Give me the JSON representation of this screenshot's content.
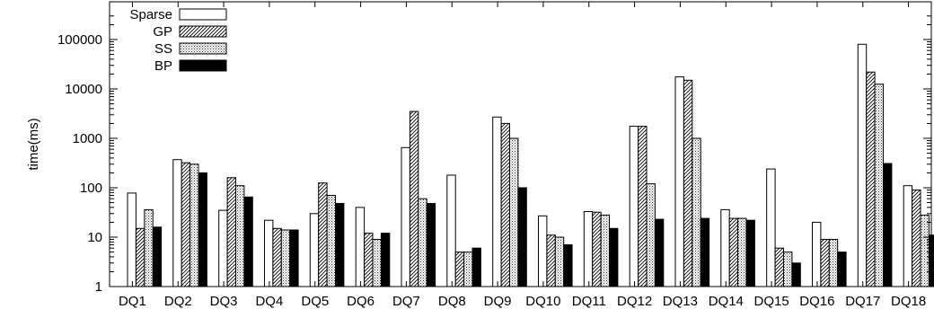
{
  "chart_data": {
    "type": "bar",
    "ylabel": "time(ms)",
    "yscale": "log",
    "ylim": [
      1,
      300000
    ],
    "yticks": [
      {
        "value": 1,
        "label": "1"
      },
      {
        "value": 10,
        "label": "10"
      },
      {
        "value": 100,
        "label": "100"
      },
      {
        "value": 1000,
        "label": "1000"
      },
      {
        "value": 10000,
        "label": "10000"
      },
      {
        "value": 100000,
        "label": "100000"
      }
    ],
    "grid": false,
    "legend_position": "top-left",
    "categories": [
      "DQ1",
      "DQ2",
      "DQ3",
      "DQ4",
      "DQ5",
      "DQ6",
      "DQ7",
      "DQ8",
      "DQ9",
      "DQ10",
      "DQ11",
      "DQ12",
      "DQ13",
      "DQ14",
      "DQ15",
      "DQ16",
      "DQ17",
      "DQ18"
    ],
    "series": [
      {
        "name": "Sparse",
        "pattern": "empty",
        "values": [
          78,
          370,
          35,
          22,
          30,
          40,
          650,
          180,
          2700,
          27,
          33,
          1750,
          17500,
          36,
          240,
          20,
          80000,
          110
        ]
      },
      {
        "name": "GP",
        "pattern": "hatch",
        "values": [
          15,
          320,
          160,
          15,
          125,
          12,
          3500,
          5,
          2000,
          11,
          32,
          1750,
          15000,
          24,
          6,
          9,
          22000,
          90
        ]
      },
      {
        "name": "SS",
        "pattern": "dots",
        "values": [
          36,
          300,
          110,
          14,
          70,
          9,
          60,
          5,
          1000,
          10,
          28,
          120,
          1000,
          24,
          5,
          9,
          12500,
          28
        ]
      },
      {
        "name": "BP",
        "pattern": "solid",
        "values": [
          16,
          200,
          65,
          14,
          48,
          12,
          48,
          6,
          100,
          7,
          15,
          23,
          24,
          22,
          3,
          5,
          310,
          11
        ]
      }
    ]
  }
}
